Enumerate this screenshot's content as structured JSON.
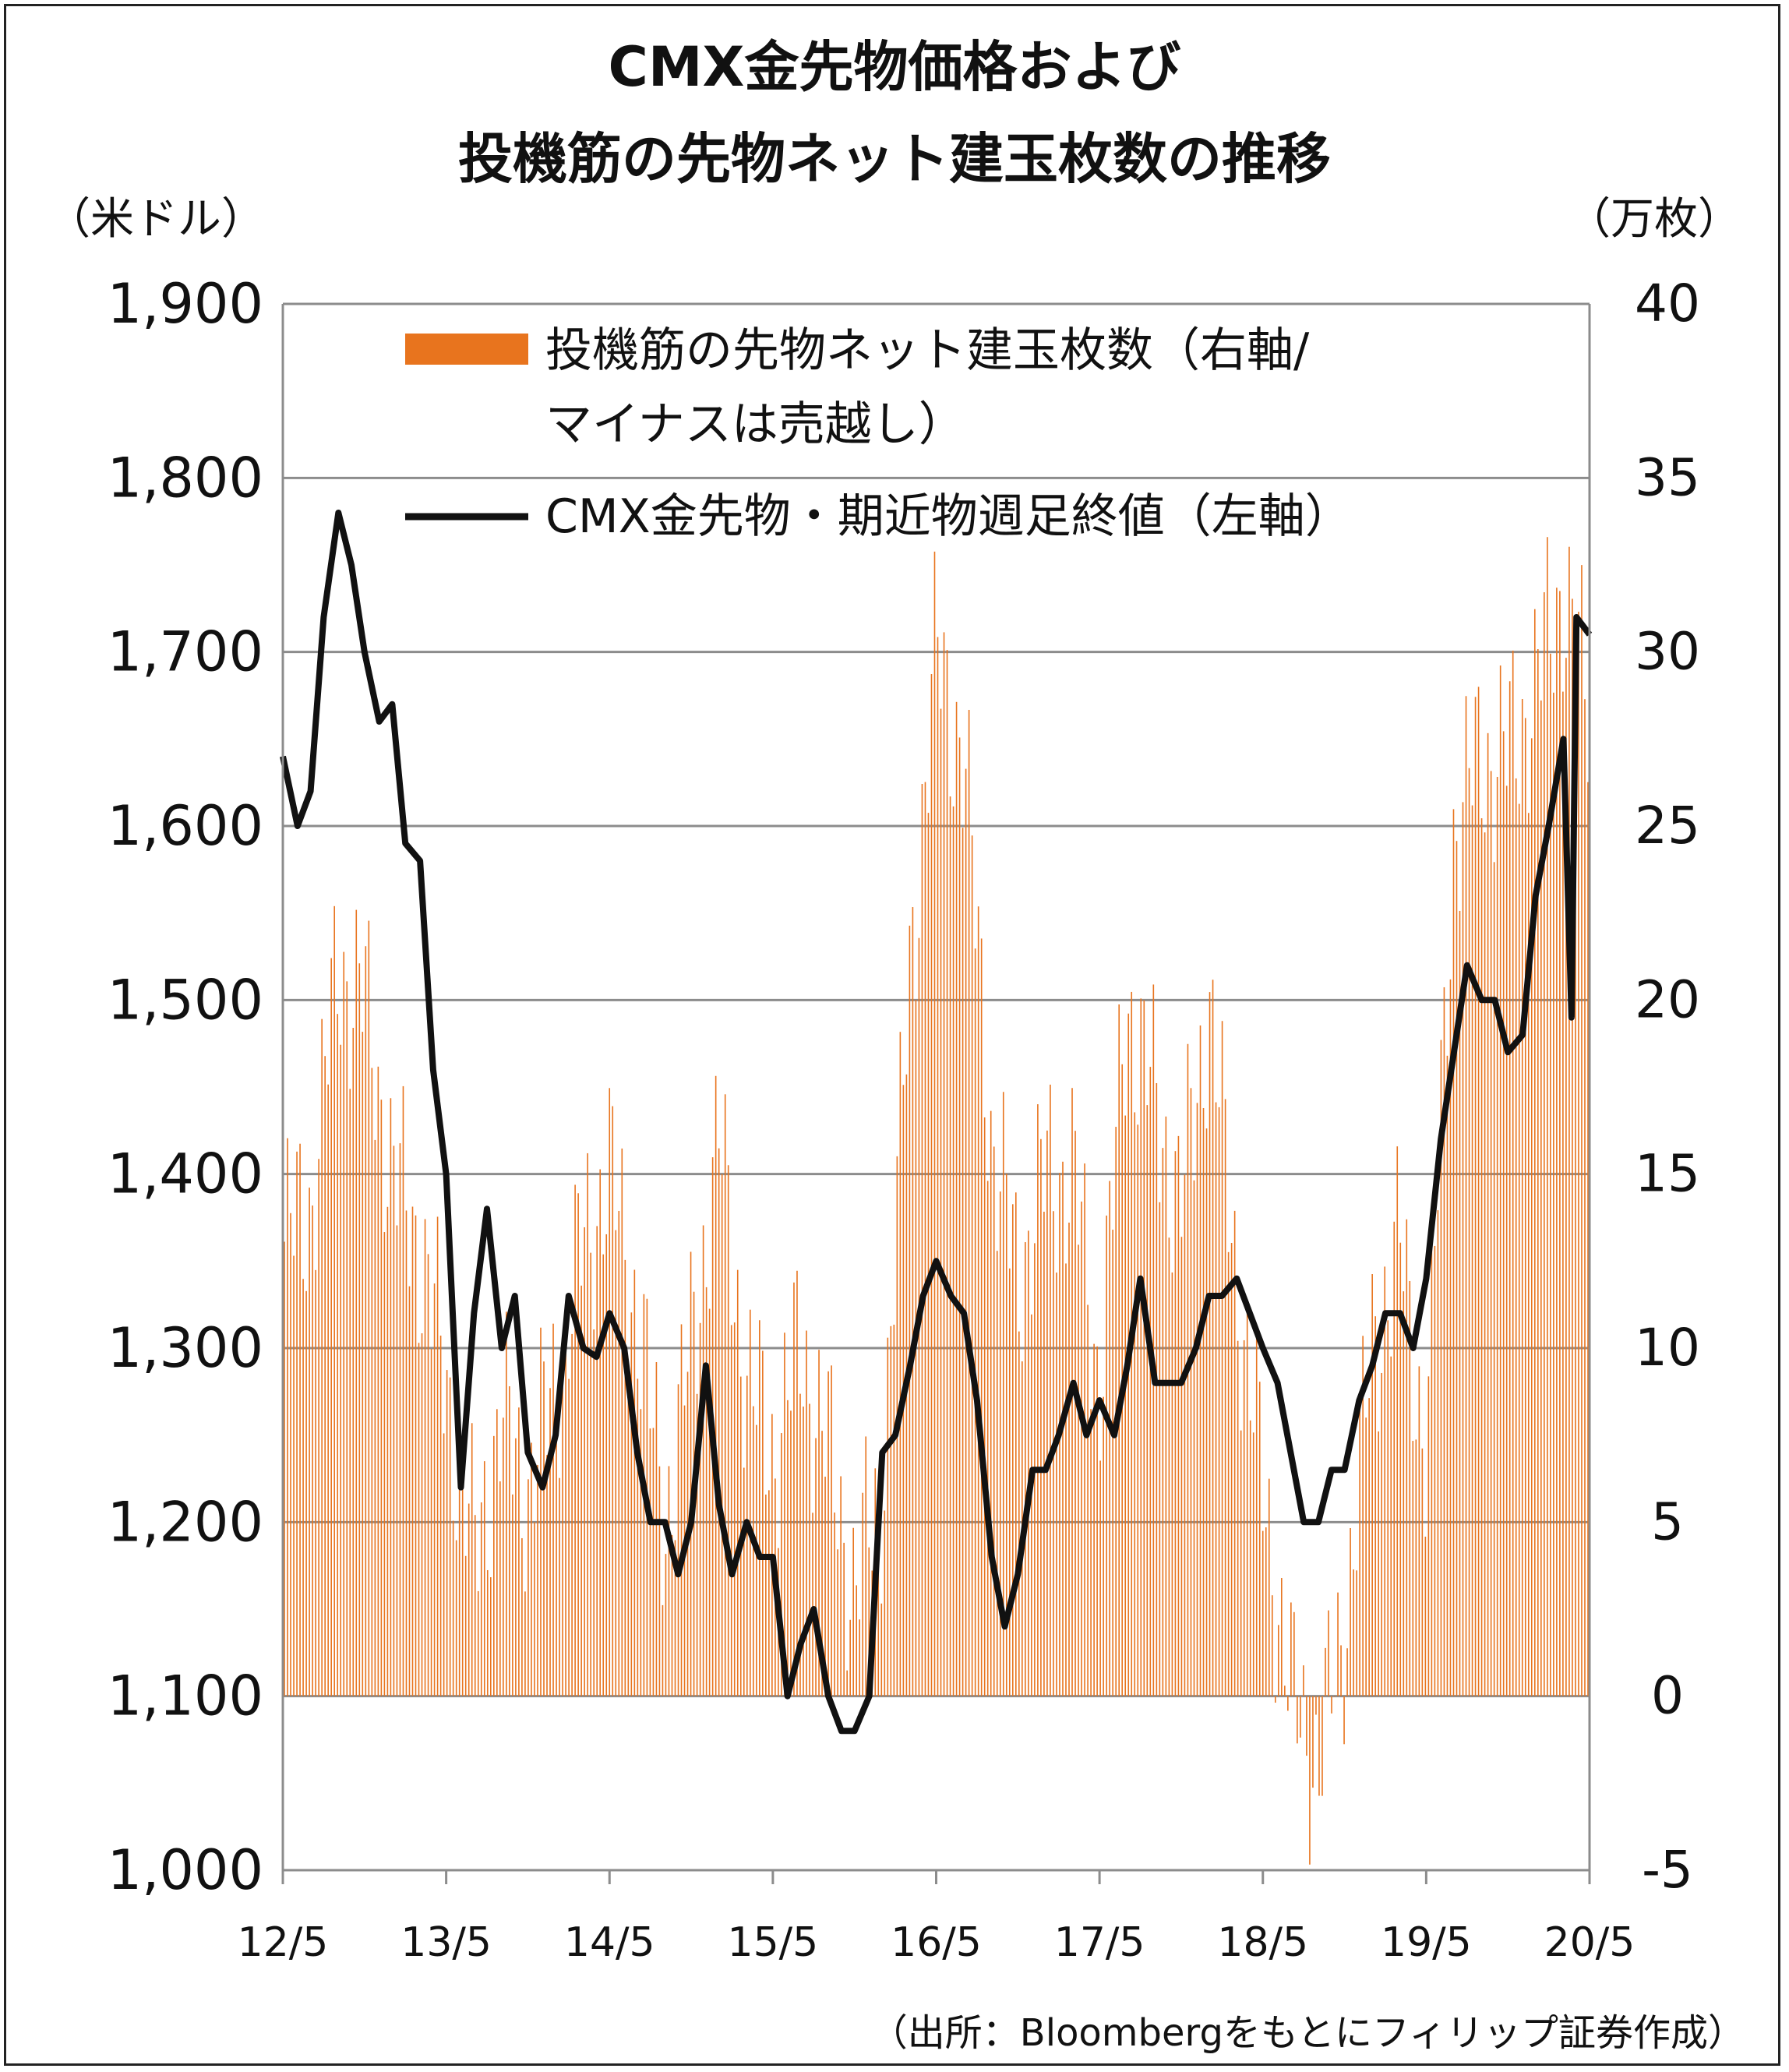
{
  "chart_data": {
    "type": "line",
    "title_lines": [
      "CMX金先物価格および",
      "投機筋の先物ネット建玉枚数の推移"
    ],
    "left_unit": "（米ドル）",
    "right_unit": "（万枚）",
    "left_ylim": [
      1000,
      1900
    ],
    "right_ylim": [
      -5,
      40
    ],
    "left_ticks": [
      "1,000",
      "1,100",
      "1,200",
      "1,300",
      "1,400",
      "1,500",
      "1,600",
      "1,700",
      "1,800",
      "1,900"
    ],
    "left_tick_values": [
      1000,
      1100,
      1200,
      1300,
      1400,
      1500,
      1600,
      1700,
      1800,
      1900
    ],
    "right_ticks": [
      "-5",
      "0",
      "5",
      "10",
      "15",
      "20",
      "25",
      "30",
      "35",
      "40"
    ],
    "right_tick_values": [
      -5,
      0,
      5,
      10,
      15,
      20,
      25,
      30,
      35,
      40
    ],
    "x_ticks": [
      "12/5",
      "13/5",
      "14/5",
      "15/5",
      "16/5",
      "17/5",
      "18/5",
      "19/5",
      "20/5"
    ],
    "x_range": [
      2012.33,
      2020.33
    ],
    "grid": true,
    "legend_placement": "top-center",
    "source": "（出所：Bloombergをもとにフィリップ証券作成）",
    "series": [
      {
        "name": "投機筋の先物ネット建玉枚数（右軸/マイナスは売越し）",
        "legend_lines": [
          "投機筋の先物ネット建玉枚数（右軸/",
          "マイナスは売越し）"
        ],
        "type": "bar",
        "axis": "right",
        "color": "#E8741E",
        "x": [
          2012.33,
          2012.5,
          2012.67,
          2012.83,
          2013.0,
          2013.17,
          2013.33,
          2013.5,
          2013.67,
          2013.83,
          2014.0,
          2014.17,
          2014.33,
          2014.5,
          2014.67,
          2014.83,
          2015.0,
          2015.17,
          2015.33,
          2015.5,
          2015.67,
          2015.83,
          2016.0,
          2016.17,
          2016.33,
          2016.5,
          2016.67,
          2016.83,
          2017.0,
          2017.17,
          2017.33,
          2017.5,
          2017.67,
          2017.83,
          2018.0,
          2018.17,
          2018.33,
          2018.5,
          2018.67,
          2018.83,
          2019.0,
          2019.17,
          2019.33,
          2019.5,
          2019.67,
          2019.83,
          2020.0,
          2020.17,
          2020.33
        ],
        "values": [
          13,
          14,
          21,
          20,
          15,
          13,
          9,
          4,
          8,
          6,
          9,
          13,
          15,
          11,
          5,
          10,
          16,
          9,
          7,
          10,
          7,
          3,
          6,
          21,
          30,
          27,
          16,
          12,
          15,
          15,
          9,
          20,
          17,
          14,
          20,
          12,
          6,
          0,
          -2,
          2,
          10,
          13,
          7,
          25,
          27,
          27,
          29,
          32,
          28
        ]
      },
      {
        "name": "CMX金先物・期近物週足終値（左軸）",
        "legend_lines": [
          "CMX金先物・期近物週足終値（左軸）"
        ],
        "type": "line",
        "axis": "left",
        "color": "#111111",
        "x": [
          2012.33,
          2012.42,
          2012.5,
          2012.58,
          2012.67,
          2012.75,
          2012.83,
          2012.92,
          2013.0,
          2013.08,
          2013.17,
          2013.25,
          2013.33,
          2013.42,
          2013.5,
          2013.58,
          2013.67,
          2013.75,
          2013.83,
          2013.92,
          2014.0,
          2014.08,
          2014.17,
          2014.25,
          2014.33,
          2014.42,
          2014.5,
          2014.58,
          2014.67,
          2014.75,
          2014.83,
          2014.92,
          2015.0,
          2015.08,
          2015.17,
          2015.25,
          2015.33,
          2015.42,
          2015.5,
          2015.58,
          2015.67,
          2015.75,
          2015.83,
          2015.92,
          2016.0,
          2016.08,
          2016.17,
          2016.25,
          2016.33,
          2016.42,
          2016.5,
          2016.58,
          2016.67,
          2016.75,
          2016.83,
          2016.92,
          2017.0,
          2017.08,
          2017.17,
          2017.25,
          2017.33,
          2017.42,
          2017.5,
          2017.58,
          2017.67,
          2017.75,
          2017.83,
          2017.92,
          2018.0,
          2018.08,
          2018.17,
          2018.25,
          2018.33,
          2018.42,
          2018.5,
          2018.58,
          2018.67,
          2018.75,
          2018.83,
          2018.92,
          2019.0,
          2019.08,
          2019.17,
          2019.25,
          2019.33,
          2019.42,
          2019.5,
          2019.58,
          2019.67,
          2019.75,
          2019.83,
          2019.92,
          2020.0,
          2020.08,
          2020.17,
          2020.22,
          2020.25,
          2020.33
        ],
        "values": [
          1640,
          1600,
          1620,
          1720,
          1780,
          1750,
          1700,
          1660,
          1670,
          1590,
          1580,
          1460,
          1400,
          1220,
          1320,
          1380,
          1300,
          1330,
          1240,
          1220,
          1250,
          1330,
          1300,
          1295,
          1320,
          1300,
          1240,
          1200,
          1200,
          1170,
          1200,
          1290,
          1210,
          1170,
          1200,
          1180,
          1180,
          1100,
          1130,
          1150,
          1100,
          1080,
          1080,
          1100,
          1240,
          1250,
          1290,
          1330,
          1350,
          1330,
          1320,
          1270,
          1180,
          1140,
          1170,
          1230,
          1230,
          1250,
          1280,
          1250,
          1270,
          1250,
          1290,
          1340,
          1280,
          1280,
          1280,
          1300,
          1330,
          1330,
          1340,
          1320,
          1300,
          1280,
          1240,
          1200,
          1200,
          1230,
          1230,
          1270,
          1290,
          1320,
          1320,
          1300,
          1340,
          1420,
          1470,
          1520,
          1500,
          1500,
          1470,
          1480,
          1560,
          1600,
          1650,
          1490,
          1720,
          1710
        ]
      }
    ]
  }
}
